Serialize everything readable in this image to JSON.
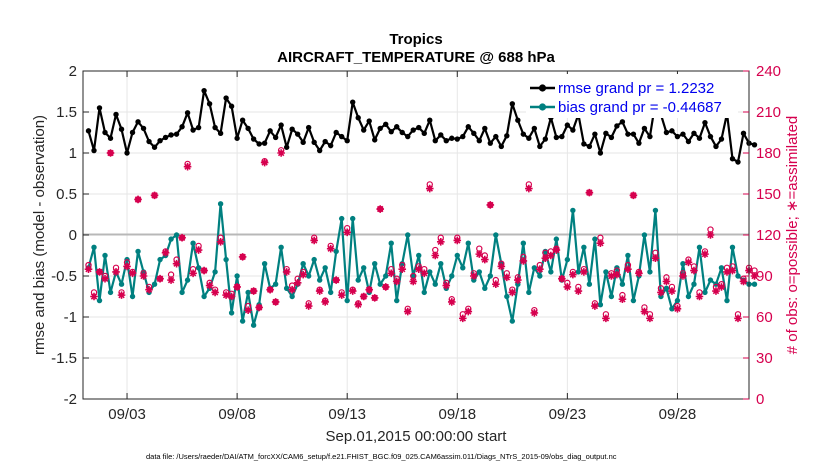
{
  "chart_data": {
    "type": "line",
    "title": "Tropics",
    "subtitle": "AIRCRAFT_TEMPERATURE @ 688 hPa",
    "xlabel": "Sep.01,2015 00:00:00 start",
    "ylabel": "rmse and bias (model - observation)",
    "ylabel_right": "# of obs: o=possible; ∗=assimilated",
    "footnote": "data file: /Users/raeder/DAI/ATM_forcXX/CAM6_setup/f.e21.FHIST_BGC.f09_025.CAM6assim.011/Diags_NTrS_2015-09/obs_diag_output.nc",
    "grid": true,
    "legend_position": "top-right",
    "xlim": [
      1.0,
      31.25
    ],
    "ylim": [
      -2,
      2
    ],
    "ylim_right": [
      0,
      240
    ],
    "x_ticks": [
      3,
      8,
      13,
      18,
      23,
      28
    ],
    "x_tick_labels": [
      "09/03",
      "09/08",
      "09/13",
      "09/18",
      "09/23",
      "09/28"
    ],
    "y_ticks": [
      -2,
      -1.5,
      -1,
      -0.5,
      0,
      0.5,
      1,
      1.5,
      2
    ],
    "y_tick_labels": [
      "-2",
      "-1.5",
      "-1",
      "-0.5",
      "0",
      "0.5",
      "1",
      "1.5",
      "2"
    ],
    "y_ticks_right": [
      0,
      30,
      60,
      90,
      120,
      150,
      180,
      210,
      240
    ],
    "y_tick_labels_right": [
      "0",
      "30",
      "60",
      "90",
      "120",
      "150",
      "180",
      "210",
      "240"
    ],
    "series": [
      {
        "name": "rmse grand pr = 1.2232",
        "color": "#000000",
        "values": [
          1.27,
          1.03,
          1.55,
          1.25,
          1.18,
          1.47,
          1.29,
          1.0,
          1.25,
          1.38,
          1.3,
          1.14,
          1.07,
          1.15,
          1.19,
          1.22,
          1.23,
          1.32,
          1.49,
          1.28,
          1.31,
          1.76,
          1.6,
          1.31,
          1.24,
          1.67,
          1.57,
          1.18,
          1.4,
          1.3,
          1.17,
          1.11,
          1.12,
          1.27,
          1.19,
          1.34,
          1.07,
          1.29,
          1.23,
          1.13,
          1.31,
          1.13,
          1.03,
          1.14,
          1.09,
          1.25,
          1.2,
          1.15,
          1.62,
          1.43,
          1.28,
          1.39,
          1.16,
          1.3,
          1.35,
          1.26,
          1.32,
          1.25,
          1.2,
          1.28,
          1.31,
          1.24,
          1.4,
          1.15,
          1.22,
          1.15,
          1.18,
          1.17,
          1.2,
          1.32,
          1.24,
          1.15,
          1.3,
          1.12,
          1.2,
          1.08,
          1.21,
          1.6,
          1.4,
          1.23,
          1.18,
          1.3,
          1.08,
          1.17,
          1.43,
          1.19,
          1.2,
          1.34,
          1.28,
          1.47,
          1.11,
          1.08,
          1.23,
          1.0,
          1.24,
          1.19,
          1.33,
          1.38,
          1.23,
          1.23,
          1.12,
          1.3,
          1.2,
          1.62,
          1.47,
          1.25,
          1.27,
          1.2,
          1.23,
          1.14,
          1.24,
          1.18,
          1.37,
          1.2,
          1.08,
          1.17,
          1.48,
          0.93,
          0.89,
          1.24,
          1.12,
          1.1
        ]
      },
      {
        "name": "bias grand pr = -0.44687",
        "color": "#008080",
        "values": [
          -0.4,
          -0.15,
          -0.8,
          -0.25,
          -0.7,
          -0.45,
          -0.6,
          -0.3,
          -0.75,
          -0.2,
          -0.45,
          -0.7,
          -0.6,
          -0.3,
          -0.25,
          -0.05,
          0.0,
          -0.7,
          -0.55,
          -0.1,
          -0.4,
          -0.75,
          -0.65,
          -0.45,
          0.38,
          -0.3,
          -0.95,
          -0.5,
          -1.05,
          -0.7,
          -1.1,
          -0.85,
          -0.35,
          -0.65,
          -0.6,
          -0.15,
          -0.65,
          -0.75,
          -0.6,
          -0.35,
          -0.5,
          -0.3,
          -0.55,
          -0.4,
          -0.7,
          -0.2,
          0.2,
          -0.8,
          0.2,
          -0.55,
          -0.4,
          -0.7,
          -0.35,
          -0.6,
          -0.5,
          -0.1,
          -0.8,
          -0.35,
          0.0,
          -0.5,
          -0.25,
          -0.7,
          -0.45,
          -0.6,
          -0.35,
          -0.65,
          -0.5,
          -0.25,
          -0.4,
          -0.1,
          -0.55,
          -0.45,
          -0.65,
          -0.5,
          0.0,
          -0.35,
          -0.75,
          -1.05,
          -0.6,
          -0.1,
          -0.7,
          -0.4,
          -0.5,
          -0.2,
          -0.45,
          -0.05,
          -0.55,
          -0.3,
          0.3,
          -0.45,
          -0.15,
          -0.6,
          -0.05,
          -0.85,
          -0.45,
          -0.75,
          -0.4,
          -0.6,
          -0.25,
          -0.8,
          -0.5,
          0.0,
          -0.45,
          0.3,
          -0.75,
          -0.65,
          -0.9,
          -0.8,
          -0.35,
          -0.75,
          -0.6,
          -0.15,
          -0.7,
          -0.55,
          -0.6,
          -0.4,
          -0.8,
          -0.15,
          -0.5,
          -0.55,
          -0.6,
          -0.6
        ]
      }
    ],
    "obs_counts": {
      "name": "# of obs",
      "color": "#d6004e",
      "possible_symbol": "o",
      "assimilated_symbol": "*",
      "assimilated": [
        95,
        75,
        93,
        88,
        180,
        93,
        76,
        97,
        92,
        146,
        90,
        80,
        149,
        88,
        107,
        87,
        99,
        118,
        170,
        92,
        109,
        94,
        83,
        78,
        115,
        76,
        75,
        82,
        104,
        65,
        79,
        67,
        173,
        80,
        71,
        180,
        93,
        80,
        85,
        91,
        68,
        116,
        79,
        71,
        110,
        87,
        76,
        122,
        79,
        69,
        75,
        80,
        74,
        139,
        82,
        92,
        86,
        95,
        64,
        86,
        95,
        92,
        154,
        105,
        115,
        83,
        71,
        116,
        59,
        64,
        90,
        106,
        102,
        142,
        84,
        97,
        89,
        78,
        87,
        101,
        154,
        63,
        95,
        103,
        105,
        109,
        88,
        82,
        91,
        79,
        93,
        151,
        68,
        114,
        59,
        90,
        91,
        73,
        95,
        149,
        92,
        64,
        59,
        103,
        78,
        86,
        79,
        66,
        90,
        100,
        94,
        75,
        106,
        120,
        79,
        82,
        93,
        94,
        59,
        86,
        94,
        90
      ],
      "possible": [
        98,
        78,
        93,
        90,
        180,
        96,
        78,
        100,
        93,
        146,
        92,
        82,
        149,
        88,
        108,
        91,
        102,
        118,
        172,
        95,
        112,
        94,
        85,
        80,
        118,
        78,
        77,
        82,
        104,
        68,
        79,
        67,
        174,
        80,
        71,
        182,
        95,
        83,
        88,
        93,
        70,
        118,
        80,
        72,
        112,
        87,
        78,
        125,
        80,
        70,
        75,
        80,
        74,
        139,
        82,
        95,
        88,
        98,
        66,
        90,
        97,
        95,
        157,
        109,
        118,
        85,
        73,
        118,
        62,
        66,
        92,
        110,
        105,
        142,
        87,
        99,
        92,
        80,
        89,
        104,
        157,
        65,
        98,
        107,
        108,
        110,
        88,
        85,
        93,
        82,
        95,
        151,
        70,
        118,
        62,
        92,
        94,
        76,
        98,
        149,
        93,
        67,
        62,
        107,
        81,
        89,
        82,
        68,
        92,
        102,
        97,
        78,
        108,
        124,
        82,
        84,
        96,
        97,
        62,
        88,
        96,
        94
      ]
    }
  }
}
